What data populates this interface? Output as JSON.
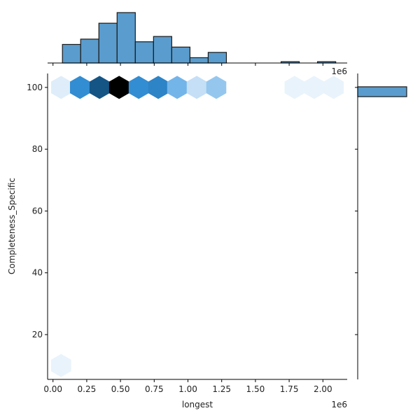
{
  "chart_data": {
    "type": "hexbin-joint",
    "xlabel": "longest",
    "ylabel": "Completeness_Specific",
    "x_offset_label": "1e6",
    "top_offset_label": "1e6",
    "xlim": [
      -40000,
      2180000
    ],
    "ylim": [
      5.5,
      104.5
    ],
    "xticks": [
      0,
      250000,
      500000,
      750000,
      1000000,
      1250000,
      1500000,
      1750000,
      2000000
    ],
    "xtick_labels": [
      "0.00",
      "0.25",
      "0.50",
      "0.75",
      "1.00",
      "1.25",
      "1.50",
      "1.75",
      "2.00"
    ],
    "yticks": [
      20,
      40,
      60,
      80,
      100
    ],
    "ytick_labels": [
      "20",
      "40",
      "60",
      "80",
      "100"
    ],
    "hexbins": [
      {
        "x": 60000,
        "y": 100,
        "intensity": 0.06
      },
      {
        "x": 200000,
        "y": 100,
        "intensity": 0.62
      },
      {
        "x": 345000,
        "y": 100,
        "intensity": 0.88
      },
      {
        "x": 490000,
        "y": 100,
        "intensity": 1.0
      },
      {
        "x": 635000,
        "y": 100,
        "intensity": 0.62
      },
      {
        "x": 780000,
        "y": 100,
        "intensity": 0.68
      },
      {
        "x": 920000,
        "y": 100,
        "intensity": 0.38
      },
      {
        "x": 1065000,
        "y": 100,
        "intensity": 0.14
      },
      {
        "x": 1210000,
        "y": 100,
        "intensity": 0.28
      },
      {
        "x": 1790000,
        "y": 100,
        "intensity": 0.03
      },
      {
        "x": 1935000,
        "y": 100,
        "intensity": 0.03
      },
      {
        "x": 2080000,
        "y": 100,
        "intensity": 0.03
      },
      {
        "x": 60000,
        "y": 10,
        "intensity": 0.03
      }
    ],
    "x_marginal_hist": {
      "bin_edges": [
        70000,
        205000,
        340000,
        475000,
        610000,
        745000,
        880000,
        1015000,
        1150000,
        1285000,
        1420000,
        1555000,
        1690000,
        1825000,
        1960000,
        2095000
      ],
      "counts": [
        7,
        9,
        15,
        19,
        8,
        10,
        6,
        2,
        4,
        0,
        0,
        0,
        0.5,
        0,
        0.5
      ]
    },
    "y_marginal_hist": {
      "bins": [
        {
          "y0": 97,
          "y1": 100.2,
          "count": 80
        }
      ],
      "max_count": 80
    },
    "colors": {
      "hist_fill": "#5a9ccd",
      "hist_edge": "#1a1a1a",
      "hex_light": "#f3f8fd",
      "hex_mid": "#3b97e0",
      "hex_dark": "#1a6aa6",
      "hex_max": "#000000"
    }
  }
}
